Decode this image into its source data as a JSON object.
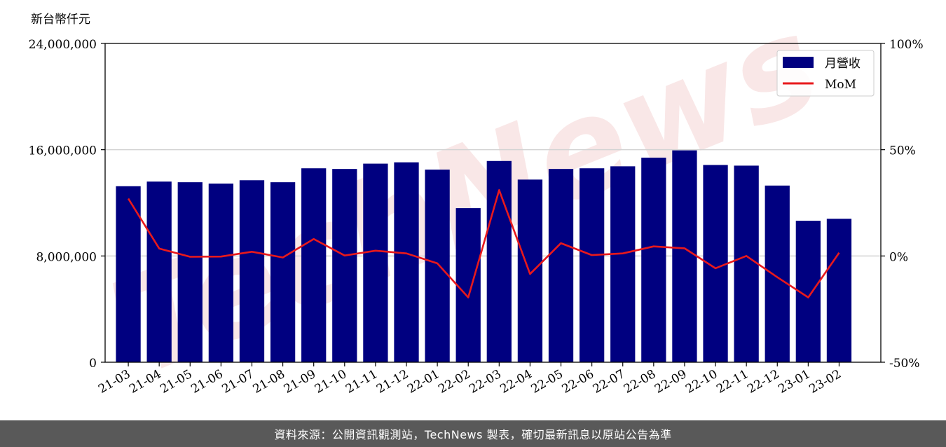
{
  "chart_data": {
    "type": "bar",
    "unit_label": "新台幣仟元",
    "categories": [
      "21-03",
      "21-04",
      "21-05",
      "21-06",
      "21-07",
      "21-08",
      "21-09",
      "21-10",
      "21-11",
      "21-12",
      "22-01",
      "22-02",
      "22-03",
      "22-04",
      "22-05",
      "22-06",
      "22-07",
      "22-08",
      "22-09",
      "22-10",
      "22-11",
      "22-12",
      "23-01",
      "23-02"
    ],
    "series": [
      {
        "name": "月營收",
        "axis": "left",
        "color": "#000080",
        "values": [
          13250000,
          13600000,
          13550000,
          13450000,
          13700000,
          13550000,
          14600000,
          14550000,
          14950000,
          15050000,
          14500000,
          11600000,
          15150000,
          13750000,
          14550000,
          14600000,
          14750000,
          15400000,
          15950000,
          14850000,
          14800000,
          13300000,
          10650000,
          10800000
        ]
      },
      {
        "name": "MoM",
        "axis": "right",
        "color": "#e8191c",
        "values": [
          27,
          3.5,
          -0.4,
          -0.3,
          2,
          -0.7,
          8,
          0.2,
          2.5,
          1.2,
          -3.5,
          -19.5,
          31,
          -8.5,
          6,
          0.4,
          1.2,
          4.5,
          3.6,
          -5.8,
          0,
          -10,
          -19.5,
          1.5
        ]
      }
    ],
    "y_left": {
      "ylim": [
        0,
        24000000
      ],
      "ticks": [
        0,
        8000000,
        16000000,
        24000000
      ],
      "tick_labels": [
        "0",
        "8,000,000",
        "16,000,000",
        "24,000,000"
      ]
    },
    "y_right": {
      "ylim": [
        -50,
        100
      ],
      "ticks": [
        -50,
        0,
        50,
        100
      ],
      "tick_labels": [
        "-50%",
        "0%",
        "50%",
        "100%"
      ]
    },
    "grid": "horizontal",
    "legend_position": "top-right",
    "watermark_text": "TechNews"
  },
  "footer": {
    "text": "資料來源：公開資訊觀測站，TechNews 製表，確切最新訊息以原站公告為準"
  }
}
